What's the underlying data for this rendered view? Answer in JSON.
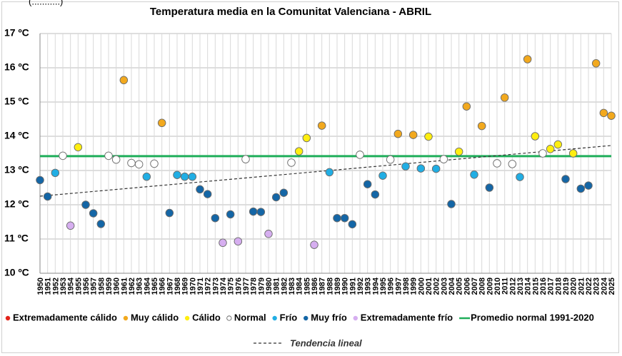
{
  "top_clipped_text": "(...........)",
  "chart_data": {
    "type": "scatter",
    "title": "Temperatura media en la Comunitat Valenciana - ABRIL",
    "ylim": [
      10,
      17
    ],
    "ytick_labels": [
      "10 ºC",
      "11 ºC",
      "12 ºC",
      "13 ºC",
      "14 ºC",
      "15 ºC",
      "16 ºC",
      "17 ºC"
    ],
    "ytick_values": [
      10,
      11,
      12,
      13,
      14,
      15,
      16,
      17
    ],
    "grid": true,
    "legend_placement": "bottom",
    "normal_value": 13.42,
    "trend": {
      "start": 12.25,
      "end": 13.73
    },
    "categories": {
      "ext_calido": {
        "label": "Extremadamente cálido",
        "color": "#e2231a"
      },
      "muy_calido": {
        "label": "Muy cálido",
        "color": "#f2a91e"
      },
      "calido": {
        "label": "Cálido",
        "color": "#ffee10"
      },
      "normal": {
        "label": "Normal",
        "color": "#ffffff"
      },
      "frio": {
        "label": "Frío",
        "color": "#21aee4"
      },
      "muy_frio": {
        "label": "Muy frío",
        "color": "#1466a6"
      },
      "ext_frio": {
        "label": "Extremadamente frío",
        "color": "#d6aef0"
      }
    },
    "legend_order": [
      "ext_calido",
      "muy_calido",
      "calido",
      "normal",
      "frio",
      "muy_frio",
      "ext_frio"
    ],
    "normal_line": {
      "label": "Promedio normal 1991-2020",
      "color": "#1fae5a"
    },
    "trend_label": "Tendencia lineal",
    "points": [
      {
        "year": 1950,
        "value": 12.72,
        "cat": "muy_frio"
      },
      {
        "year": 1951,
        "value": 12.24,
        "cat": "muy_frio"
      },
      {
        "year": 1952,
        "value": 12.93,
        "cat": "frio"
      },
      {
        "year": 1953,
        "value": 13.43,
        "cat": "normal"
      },
      {
        "year": 1954,
        "value": 11.39,
        "cat": "ext_frio"
      },
      {
        "year": 1955,
        "value": 13.68,
        "cat": "calido"
      },
      {
        "year": 1956,
        "value": 12.0,
        "cat": "muy_frio"
      },
      {
        "year": 1957,
        "value": 11.75,
        "cat": "muy_frio"
      },
      {
        "year": 1958,
        "value": 11.44,
        "cat": "muy_frio"
      },
      {
        "year": 1959,
        "value": 13.43,
        "cat": "normal"
      },
      {
        "year": 1960,
        "value": 13.32,
        "cat": "normal"
      },
      {
        "year": 1961,
        "value": 15.64,
        "cat": "muy_calido"
      },
      {
        "year": 1962,
        "value": 13.22,
        "cat": "normal"
      },
      {
        "year": 1963,
        "value": 13.18,
        "cat": "normal"
      },
      {
        "year": 1964,
        "value": 12.82,
        "cat": "frio"
      },
      {
        "year": 1965,
        "value": 13.2,
        "cat": "normal"
      },
      {
        "year": 1966,
        "value": 14.39,
        "cat": "muy_calido"
      },
      {
        "year": 1967,
        "value": 11.76,
        "cat": "muy_frio"
      },
      {
        "year": 1968,
        "value": 12.87,
        "cat": "frio"
      },
      {
        "year": 1969,
        "value": 12.82,
        "cat": "frio"
      },
      {
        "year": 1970,
        "value": 12.82,
        "cat": "frio"
      },
      {
        "year": 1971,
        "value": 12.45,
        "cat": "muy_frio"
      },
      {
        "year": 1972,
        "value": 12.31,
        "cat": "muy_frio"
      },
      {
        "year": 1973,
        "value": 11.61,
        "cat": "muy_frio"
      },
      {
        "year": 1974,
        "value": 10.89,
        "cat": "ext_frio"
      },
      {
        "year": 1975,
        "value": 11.72,
        "cat": "muy_frio"
      },
      {
        "year": 1976,
        "value": 10.93,
        "cat": "ext_frio"
      },
      {
        "year": 1977,
        "value": 13.33,
        "cat": "normal"
      },
      {
        "year": 1978,
        "value": 11.8,
        "cat": "muy_frio"
      },
      {
        "year": 1979,
        "value": 11.79,
        "cat": "muy_frio"
      },
      {
        "year": 1980,
        "value": 11.15,
        "cat": "ext_frio"
      },
      {
        "year": 1981,
        "value": 12.22,
        "cat": "muy_frio"
      },
      {
        "year": 1982,
        "value": 12.35,
        "cat": "muy_frio"
      },
      {
        "year": 1983,
        "value": 13.23,
        "cat": "normal"
      },
      {
        "year": 1984,
        "value": 13.56,
        "cat": "calido"
      },
      {
        "year": 1985,
        "value": 13.95,
        "cat": "calido"
      },
      {
        "year": 1986,
        "value": 10.83,
        "cat": "ext_frio"
      },
      {
        "year": 1987,
        "value": 14.31,
        "cat": "muy_calido"
      },
      {
        "year": 1988,
        "value": 12.95,
        "cat": "frio"
      },
      {
        "year": 1989,
        "value": 11.61,
        "cat": "muy_frio"
      },
      {
        "year": 1990,
        "value": 11.61,
        "cat": "muy_frio"
      },
      {
        "year": 1991,
        "value": 11.43,
        "cat": "muy_frio"
      },
      {
        "year": 1992,
        "value": 13.46,
        "cat": "normal"
      },
      {
        "year": 1993,
        "value": 12.6,
        "cat": "muy_frio"
      },
      {
        "year": 1994,
        "value": 12.3,
        "cat": "muy_frio"
      },
      {
        "year": 1995,
        "value": 12.85,
        "cat": "frio"
      },
      {
        "year": 1996,
        "value": 13.32,
        "cat": "normal"
      },
      {
        "year": 1997,
        "value": 14.07,
        "cat": "muy_calido"
      },
      {
        "year": 1998,
        "value": 13.12,
        "cat": "frio"
      },
      {
        "year": 1999,
        "value": 14.04,
        "cat": "muy_calido"
      },
      {
        "year": 2000,
        "value": 13.06,
        "cat": "frio"
      },
      {
        "year": 2001,
        "value": 13.99,
        "cat": "calido"
      },
      {
        "year": 2002,
        "value": 13.05,
        "cat": "frio"
      },
      {
        "year": 2003,
        "value": 13.33,
        "cat": "normal"
      },
      {
        "year": 2004,
        "value": 12.02,
        "cat": "muy_frio"
      },
      {
        "year": 2005,
        "value": 13.55,
        "cat": "calido"
      },
      {
        "year": 2006,
        "value": 14.87,
        "cat": "muy_calido"
      },
      {
        "year": 2007,
        "value": 12.88,
        "cat": "frio"
      },
      {
        "year": 2008,
        "value": 14.3,
        "cat": "muy_calido"
      },
      {
        "year": 2009,
        "value": 12.5,
        "cat": "muy_frio"
      },
      {
        "year": 2010,
        "value": 13.21,
        "cat": "normal"
      },
      {
        "year": 2011,
        "value": 15.13,
        "cat": "muy_calido"
      },
      {
        "year": 2012,
        "value": 13.19,
        "cat": "normal"
      },
      {
        "year": 2013,
        "value": 12.81,
        "cat": "frio"
      },
      {
        "year": 2014,
        "value": 16.25,
        "cat": "muy_calido"
      },
      {
        "year": 2015,
        "value": 14.0,
        "cat": "calido"
      },
      {
        "year": 2016,
        "value": 13.5,
        "cat": "normal"
      },
      {
        "year": 2017,
        "value": 13.63,
        "cat": "calido"
      },
      {
        "year": 2018,
        "value": 13.76,
        "cat": "calido"
      },
      {
        "year": 2019,
        "value": 12.75,
        "cat": "muy_frio"
      },
      {
        "year": 2020,
        "value": 13.5,
        "cat": "calido"
      },
      {
        "year": 2021,
        "value": 12.47,
        "cat": "muy_frio"
      },
      {
        "year": 2022,
        "value": 12.56,
        "cat": "muy_frio"
      },
      {
        "year": 2023,
        "value": 16.13,
        "cat": "muy_calido"
      },
      {
        "year": 2024,
        "value": 14.68,
        "cat": "muy_calido"
      },
      {
        "year": 2025,
        "value": 14.6,
        "cat": "muy_calido"
      }
    ]
  }
}
